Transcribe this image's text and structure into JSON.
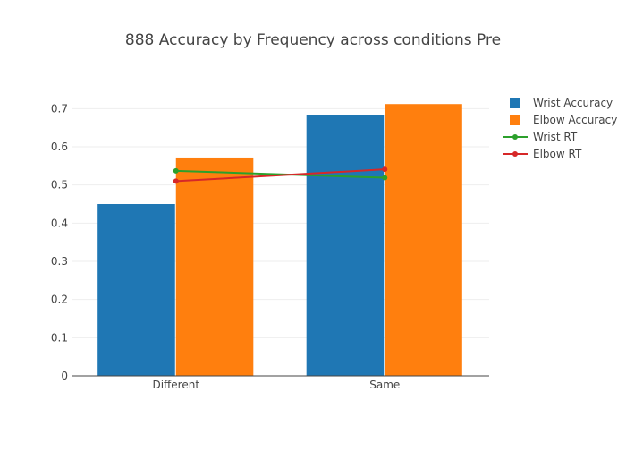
{
  "chart_data": {
    "type": "bar",
    "title": "888 Accuracy by Frequency across conditions Pre",
    "xlabel": "",
    "ylabel": "",
    "categories": [
      "Different",
      "Same"
    ],
    "ylim": [
      0,
      0.75
    ],
    "yticks": [
      0,
      0.1,
      0.2,
      0.3,
      0.4,
      0.5,
      0.6,
      0.7
    ],
    "ytick_labels": [
      "0",
      "0.1",
      "0.2",
      "0.3",
      "0.4",
      "0.5",
      "0.6",
      "0.7"
    ],
    "grid": true,
    "legend_position": "top-right",
    "series": [
      {
        "name": "Wrist Accuracy",
        "kind": "bar",
        "color": "#1f77b4",
        "values": [
          0.45,
          0.683
        ]
      },
      {
        "name": "Elbow Accuracy",
        "kind": "bar",
        "color": "#ff7f0e",
        "values": [
          0.572,
          0.712
        ]
      },
      {
        "name": "Wrist RT",
        "kind": "line",
        "color": "#2ca02c",
        "values": [
          0.537,
          0.519
        ]
      },
      {
        "name": "Elbow RT",
        "kind": "line",
        "color": "#d62728",
        "values": [
          0.51,
          0.541
        ]
      }
    ]
  }
}
